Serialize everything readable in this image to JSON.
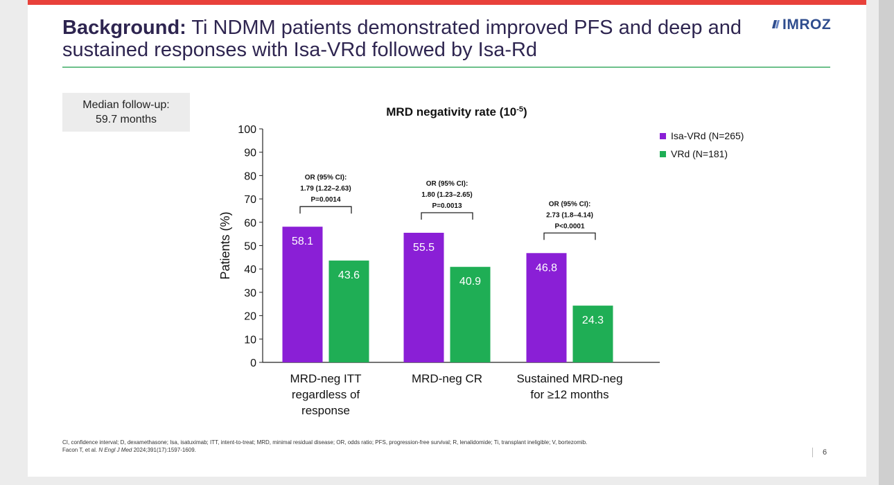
{
  "slide": {
    "title_bold": "Background:",
    "title_rest": " Ti NDMM patients demonstrated improved PFS and deep and sustained responses with Isa-VRd followed by Isa-Rd",
    "logo": "IMROZ",
    "followup_line1": "Median follow-up:",
    "followup_line2": "59.7 months",
    "footnote_line1": "CI, confidence interval; D, dexamethasone; Isa, isatuximab; ITT, intent-to-treat; MRD, minimal residual disease; OR, odds ratio; PFS, progression-free survival; R, lenalidomide; Ti, transplant ineligible; V, bortezomib.",
    "footnote_citation_pre": "Facon T, et al. ",
    "footnote_citation_journal": "N Engl J Med",
    "footnote_citation_post": " 2024;391(17):1597-1609.",
    "page_number": "6"
  },
  "colors": {
    "isa_vrd": "#8a1fd6",
    "vrd": "#1fae55",
    "accent_red": "#e8413a",
    "title": "#2e2550"
  },
  "chart_data": {
    "type": "bar",
    "title": "MRD negativity rate (10",
    "title_sup": "-5",
    "title_end": ")",
    "ylabel": "Patients (%)",
    "xlabel": "",
    "ylim": [
      0,
      100
    ],
    "yticks": [
      0,
      10,
      20,
      30,
      40,
      50,
      60,
      70,
      80,
      90,
      100
    ],
    "categories": [
      [
        "MRD-neg ITT",
        "regardless of",
        "response"
      ],
      [
        "MRD-neg CR"
      ],
      [
        "Sustained MRD-neg",
        "for ≥12 months"
      ]
    ],
    "series": [
      {
        "name": "Isa-VRd (N=265)",
        "values": [
          58.1,
          55.5,
          46.8
        ],
        "labels": [
          "58.1",
          "55.5",
          "46.8"
        ]
      },
      {
        "name": "VRd (N=181)",
        "values": [
          43.6,
          40.9,
          24.3
        ],
        "labels": [
          "43.6",
          "40.9",
          "24.3"
        ]
      }
    ],
    "annotations": [
      [
        "OR (95% CI):",
        "1.79 (1.22–2.63)",
        "P=0.0014"
      ],
      [
        "OR (95% CI):",
        "1.80 (1.23–2.65)",
        "P=0.0013"
      ],
      [
        "OR (95% CI):",
        "2.73 (1.8–4.14)",
        "P<0.0001"
      ]
    ],
    "legend_position": "top-right",
    "grid": false
  }
}
